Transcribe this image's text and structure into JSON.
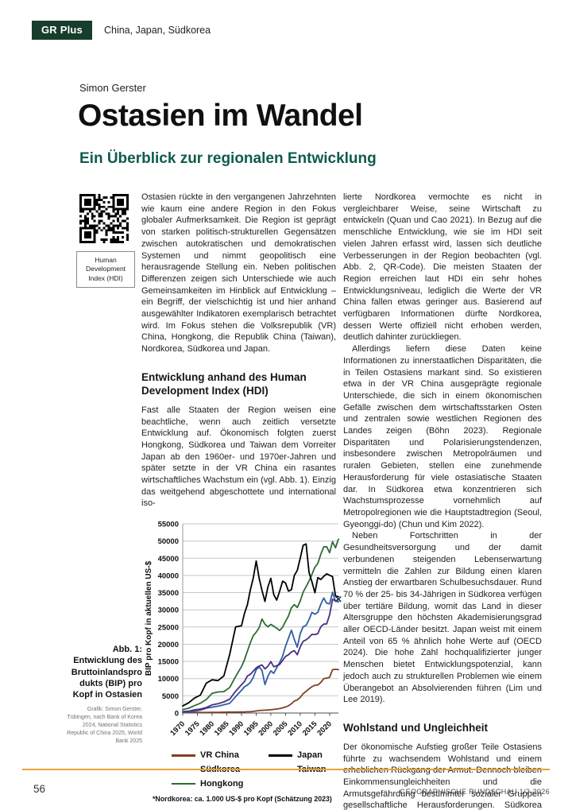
{
  "theme": {
    "badge_green": "#173D2D",
    "subtitle_teal": "#0F5B4E",
    "divider_orange": "#E8A13C"
  },
  "header": {
    "badge": "GR Plus",
    "topics": "China, Japan, Südkorea"
  },
  "article": {
    "author": "Simon Gerster",
    "title": "Ostasien im Wandel",
    "subtitle": "Ein Überblick zur regionalen Entwicklung",
    "qr_label": "Human Development Index (HDI)",
    "intro": "Ostasien rückte in den vergangenen Jahrzehnten wie kaum eine andere Region in den Fokus globaler Aufmerksamkeit. Die Region ist geprägt von starken politisch-strukturellen Gegensätzen zwischen autokratischen und demokratischen Systemen und nimmt geopolitisch eine herausragende Stellung ein. Neben politischen Differenzen zeigen sich Unterschiede wie auch Gemeinsamkeiten im Hinblick auf Entwicklung – ein Begriff, der vielschichtig ist und hier anhand ausgewählter Indikatoren exemplarisch betrachtet wird. Im Fokus stehen die Volksrepublik (VR) China, Hongkong, die Republik China (Taiwan), Nordkorea, Südkorea und Japan.",
    "heading_hdi": "Entwicklung anhand des Human Development Index (HDI)",
    "col1_para": "Fast alle Staaten der Region weisen eine beachtliche, wenn auch zeitlich versetzte Entwicklung auf. Ökonomisch folgten zuerst Hongkong, Südkorea und Taiwan dem Vorreiter Japan ab den 1960er- und 1970er-Jahren und später setzte in der VR China ein rasantes wirtschaftliches Wachstum ein (vgl. Abb. 1). Einzig das weitgehend abgeschottete und international iso-",
    "col2_para1": "lierte Nordkorea vermochte es nicht in vergleichbarer Weise, seine Wirtschaft zu entwickeln (Quan und Cao 2021). In Bezug auf die menschliche Entwicklung, wie sie im HDI seit vielen Jahren erfasst wird, lassen sich deutliche Verbesserungen in der Region beobachten (vgl. Abb. 2, QR-Code). Die meisten Staaten der Region erreichen laut HDI ein sehr hohes Entwicklungsniveau, lediglich die Werte der VR China fallen etwas geringer aus. Basierend auf verfügbaren Informationen dürfte Nordkorea, dessen Werte offiziell nicht erhoben werden, deutlich dahinter zurückliegen.",
    "col2_para2": "Allerdings liefern diese Daten keine Informationen zu innerstaatlichen Disparitäten, die in Teilen Ostasiens markant sind. So existieren etwa in der VR China ausgeprägte regionale Unterschiede, die sich in einem ökonomischen Gefälle zwischen dem wirtschaftsstarken Osten und zentralen sowie westlichen Regionen des Landes zeigen (Böhn 2023). Regionale Disparitäten und Polarisierungstendenzen, insbesondere zwischen Metropolräumen und ruralen Gebieten, stellen eine zunehmende Herausforderung für viele ostasiatische Staaten dar. In Südkorea etwa konzentrieren sich Wachstumsprozesse vornehmlich auf Metropolregionen wie die Hauptstadtregion (Seoul, Gyeonggi-do) (Chun und Kim 2022).",
    "col2_para3": "Neben Fortschritten in der Gesundheitsversorgung und der damit verbundenen steigenden Lebenserwartung vermitteln die Zahlen zur Bildung einen klaren Anstieg der erwartbaren Schulbesuchsdauer. Rund 70 % der 25- bis 34-Jährigen in Südkorea verfügen über tertiäre Bildung, womit das Land in dieser Altersgruppe den höchsten Akademisierungsgrad aller OECD-Länder besitzt. Japan weist mit einem Anteil von 65 % ähnlich hohe Werte auf (OECD 2024). Die hohe Zahl hochqualifizierter junger Menschen bietet Entwicklungspotenzial, kann jedoch auch zu strukturellen Problemen wie einem Überangebot an Absolvierenden führen (Lim und Lee 2019).",
    "heading_wohlstand": "Wohlstand und Ungleichheit",
    "col2_para4": "Der ökonomische Aufstieg großer Teile Ostasiens führte zu wachsendem Wohlstand und einem erheblichen Rückgang der Armut. Dennoch bleiben Einkommensungleichheiten und die Armutsgefährdung bestimmter sozialer Gruppen gesellschaftliche Herausforderungen. Südkorea und Japan weisen hinsichtlich des"
  },
  "figure": {
    "caption": "Abb. 1: Entwicklung des Bruttoinlandsprodukts (BIP) pro Kopf in Ostasien",
    "credit": "Grafik: Simon Gerster, Tübingen, nach Bank of Korea 2024, National Statistics Republic of China 2025, World Bank 2025",
    "footnote": "*Nordkorea: ca. 1.000 US-$ pro Kopf (Schätzung 2023)"
  },
  "chart_data": {
    "type": "line",
    "ylabel": "BIP pro Kopf in aktuellen US-$",
    "xlabel": "",
    "ylim": [
      0,
      55000
    ],
    "ytick_step": 5000,
    "xlim": [
      1970,
      2023
    ],
    "xticks": [
      1970,
      1975,
      1980,
      1985,
      1990,
      1995,
      2000,
      2005,
      2010,
      2015,
      2020
    ],
    "grid": "horizontal",
    "legend_position": "bottom",
    "x": [
      1970,
      1972,
      1974,
      1976,
      1978,
      1980,
      1982,
      1984,
      1986,
      1988,
      1990,
      1991,
      1992,
      1993,
      1994,
      1995,
      1996,
      1997,
      1998,
      1999,
      2000,
      2001,
      2002,
      2003,
      2004,
      2005,
      2006,
      2007,
      2008,
      2009,
      2010,
      2011,
      2012,
      2013,
      2014,
      2015,
      2016,
      2017,
      2018,
      2019,
      2020,
      2021,
      2022,
      2023
    ],
    "series": [
      {
        "name": "VR China",
        "color": "#7F3F26",
        "values": [
          113,
          132,
          160,
          165,
          156,
          195,
          203,
          251,
          282,
          284,
          318,
          333,
          366,
          377,
          473,
          610,
          709,
          781,
          829,
          873,
          959,
          1053,
          1149,
          1289,
          1509,
          1753,
          2099,
          2694,
          3468,
          3832,
          4550,
          5618,
          6301,
          7020,
          7679,
          8067,
          8148,
          8879,
          9977,
          10144,
          10409,
          12617,
          12720,
          12614
        ]
      },
      {
        "name": "Südkorea",
        "color": "#2E5FA3",
        "end_marker": "x",
        "values": [
          279,
          324,
          563,
          834,
          1398,
          1715,
          1977,
          2413,
          2835,
          4755,
          6610,
          7637,
          8126,
          8885,
          10385,
          12565,
          13403,
          12398,
          8282,
          10672,
          12257,
          11561,
          13165,
          14673,
          16496,
          19403,
          21743,
          24086,
          21350,
          19143,
          23087,
          25096,
          25467,
          27183,
          29250,
          28732,
          29289,
          31617,
          33447,
          31929,
          31728,
          35126,
          32423,
          33121
        ]
      },
      {
        "name": "Hongkong",
        "color": "#2F6B33",
        "values": [
          960,
          1384,
          2145,
          2850,
          3924,
          5700,
          6134,
          6208,
          7435,
          10610,
          13486,
          15466,
          17976,
          20396,
          22502,
          23497,
          24818,
          27330,
          25809,
          25092,
          25757,
          25230,
          24666,
          23977,
          24928,
          26650,
          28224,
          30594,
          31516,
          30697,
          32550,
          35142,
          36731,
          38404,
          40315,
          42431,
          43488,
          46166,
          48310,
          48354,
          46611,
          49800,
          48050,
          50532
        ]
      },
      {
        "name": "Japan",
        "color": "#000000",
        "values": [
          2056,
          2959,
          4353,
          5197,
          8675,
          9659,
          9431,
          10790,
          17112,
          25051,
          25371,
          28925,
          31465,
          35766,
          39268,
          44198,
          39164,
          35639,
          32437,
          36622,
          39173,
          34411,
          32832,
          35387,
          38307,
          37819,
          35434,
          35847,
          39992,
          41469,
          44968,
          48761,
          49145,
          40899,
          38109,
          34961,
          39375,
          38834,
          39727,
          40458,
          40041,
          39650,
          34017,
          33834
        ]
      },
      {
        "name": "Taiwan",
        "color": "#4B2E83",
        "values": [
          397,
          522,
          920,
          1158,
          1606,
          2389,
          2699,
          3224,
          4036,
          6338,
          8216,
          9136,
          10778,
          11250,
          12160,
          13129,
          13650,
          13970,
          12840,
          13585,
          14941,
          13448,
          13750,
          14120,
          15290,
          16456,
          16934,
          17757,
          18131,
          16933,
          19197,
          20866,
          21295,
          21973,
          22874,
          22780,
          23091,
          25080,
          25838,
          25908,
          28549,
          33059,
          32625,
          32339
        ]
      }
    ],
    "legend_order": [
      "VR China",
      "Japan",
      "Südkorea",
      "Taiwan",
      "Hongkong"
    ]
  },
  "footer": {
    "page_number": "56",
    "journal": "GEOGRAPHISCHE RUNDSCHAU 1/2-2026"
  }
}
